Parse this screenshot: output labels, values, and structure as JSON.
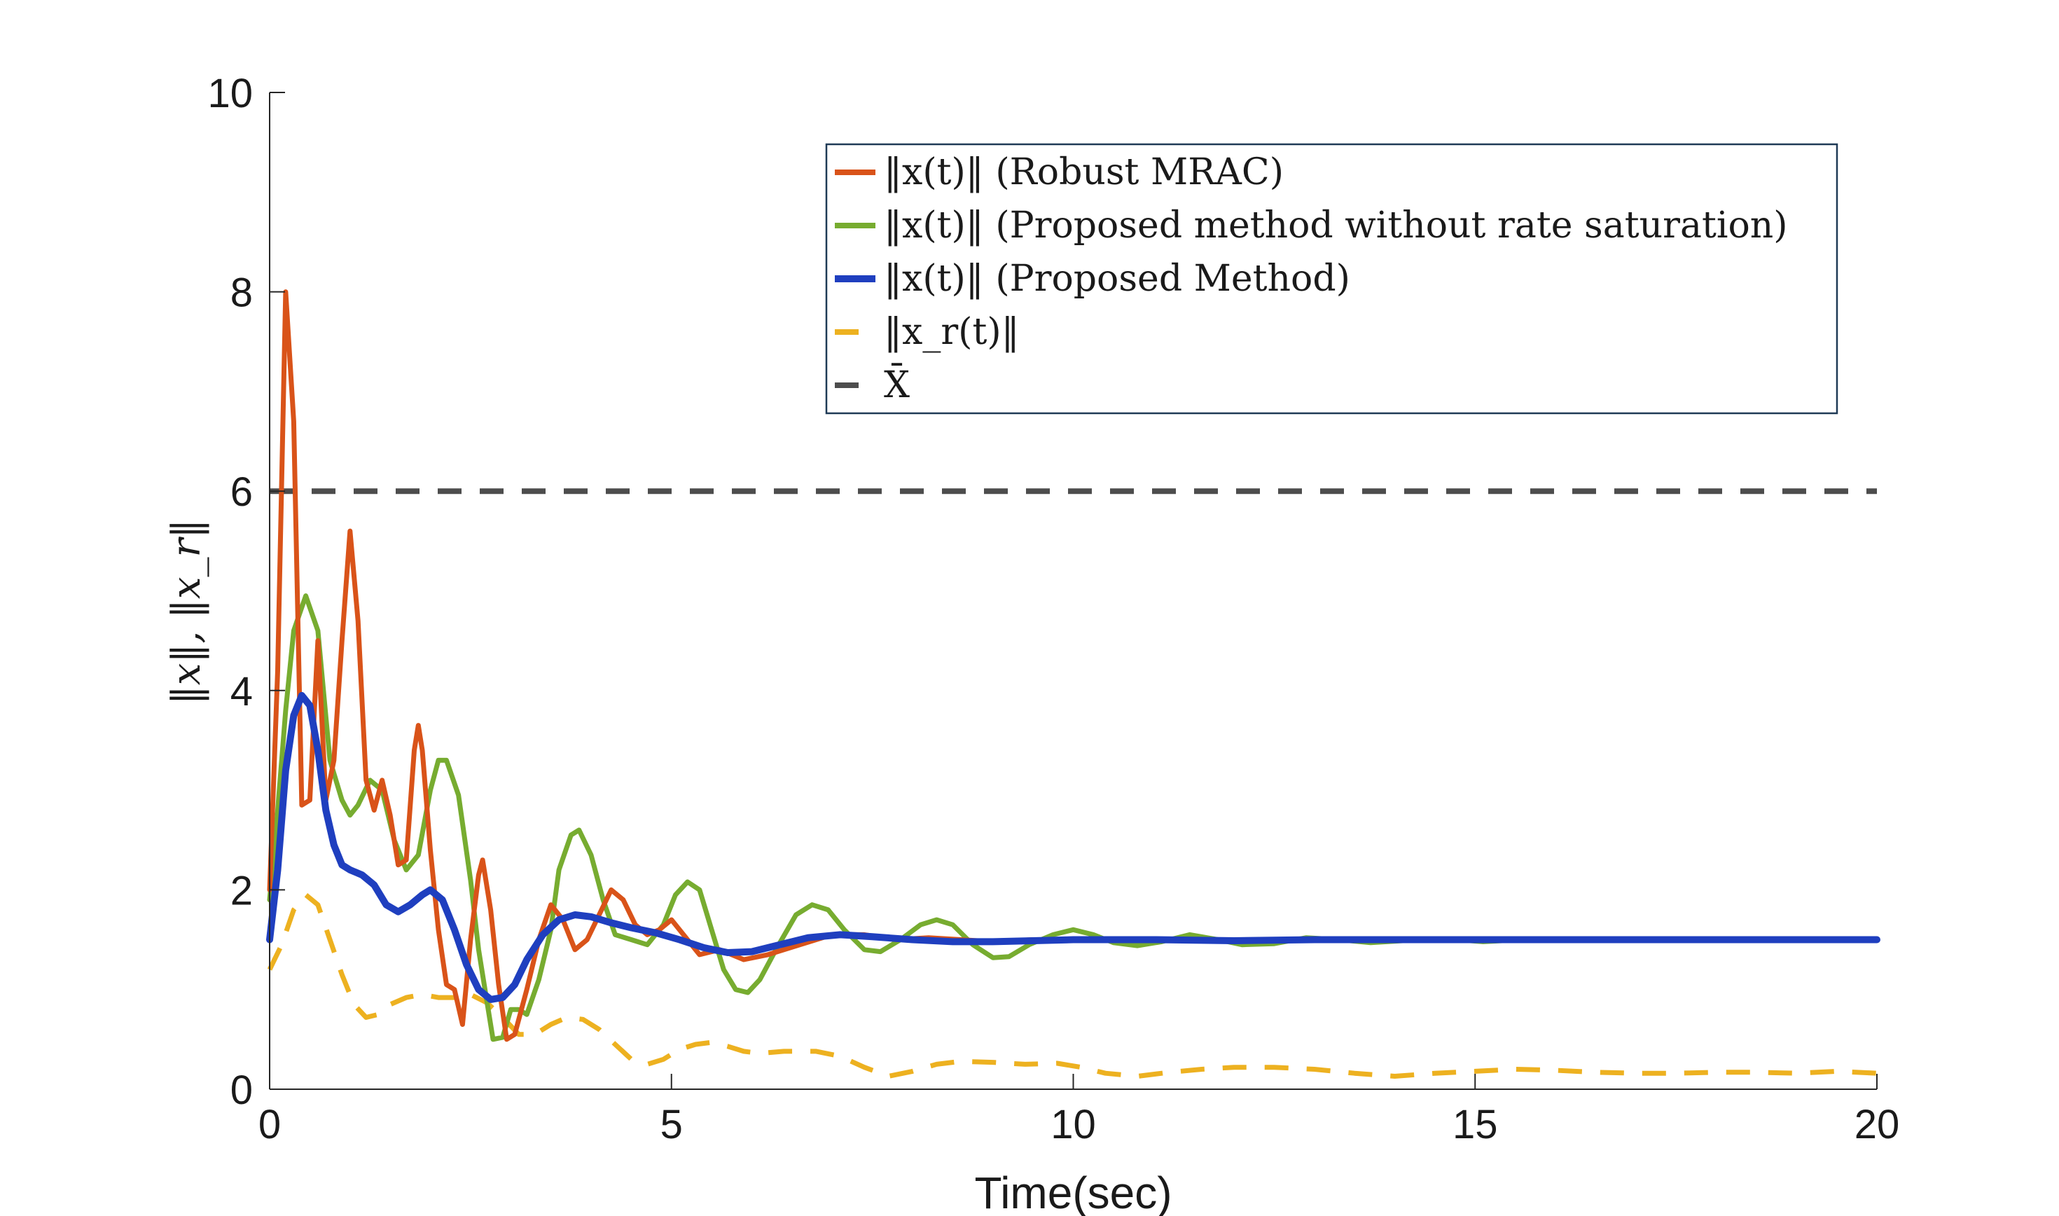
{
  "chart_data": {
    "type": "line",
    "title": "",
    "xlabel": "Time(sec)",
    "ylabel": "‖x‖, ‖x_r‖",
    "xlim": [
      0,
      20
    ],
    "ylim": [
      0,
      10
    ],
    "x_ticks": [
      "0",
      "5",
      "10",
      "15",
      "20"
    ],
    "y_ticks": [
      "0",
      "2",
      "4",
      "6",
      "8",
      "10"
    ],
    "grid": false,
    "legend_position": "top-right",
    "series": [
      {
        "name": "‖x(t)‖ (Robust MRAC)",
        "color": "#D95319",
        "style": "solid",
        "points": [
          [
            0,
            2.0
          ],
          [
            0.1,
            4.2
          ],
          [
            0.2,
            8.0
          ],
          [
            0.3,
            6.7
          ],
          [
            0.4,
            2.85
          ],
          [
            0.5,
            2.9
          ],
          [
            0.6,
            4.5
          ],
          [
            0.7,
            2.9
          ],
          [
            0.8,
            3.3
          ],
          [
            0.9,
            4.5
          ],
          [
            1.0,
            5.6
          ],
          [
            1.1,
            4.7
          ],
          [
            1.2,
            3.1
          ],
          [
            1.3,
            2.8
          ],
          [
            1.4,
            3.1
          ],
          [
            1.5,
            2.75
          ],
          [
            1.6,
            2.25
          ],
          [
            1.7,
            2.3
          ],
          [
            1.8,
            3.4
          ],
          [
            1.85,
            3.65
          ],
          [
            1.9,
            3.4
          ],
          [
            2.0,
            2.4
          ],
          [
            2.1,
            1.6
          ],
          [
            2.2,
            1.05
          ],
          [
            2.3,
            1.0
          ],
          [
            2.4,
            0.65
          ],
          [
            2.5,
            1.5
          ],
          [
            2.6,
            2.15
          ],
          [
            2.65,
            2.3
          ],
          [
            2.75,
            1.8
          ],
          [
            2.85,
            1.05
          ],
          [
            2.95,
            0.5
          ],
          [
            3.05,
            0.55
          ],
          [
            3.2,
            1.0
          ],
          [
            3.35,
            1.5
          ],
          [
            3.5,
            1.85
          ],
          [
            3.65,
            1.7
          ],
          [
            3.8,
            1.4
          ],
          [
            3.95,
            1.5
          ],
          [
            4.1,
            1.75
          ],
          [
            4.25,
            2.0
          ],
          [
            4.4,
            1.9
          ],
          [
            4.55,
            1.65
          ],
          [
            4.7,
            1.55
          ],
          [
            4.85,
            1.6
          ],
          [
            5.0,
            1.7
          ],
          [
            5.15,
            1.55
          ],
          [
            5.35,
            1.35
          ],
          [
            5.6,
            1.4
          ],
          [
            5.9,
            1.3
          ],
          [
            6.2,
            1.35
          ],
          [
            6.6,
            1.45
          ],
          [
            7.0,
            1.55
          ],
          [
            7.4,
            1.55
          ],
          [
            7.8,
            1.5
          ],
          [
            8.2,
            1.52
          ],
          [
            8.6,
            1.5
          ],
          [
            9.0,
            1.48
          ],
          [
            9.5,
            1.5
          ],
          [
            10.0,
            1.5
          ],
          [
            11,
            1.5
          ],
          [
            12,
            1.5
          ],
          [
            13,
            1.5
          ],
          [
            14,
            1.5
          ],
          [
            15,
            1.5
          ],
          [
            16,
            1.5
          ],
          [
            17,
            1.5
          ],
          [
            18,
            1.5
          ],
          [
            19,
            1.5
          ],
          [
            20,
            1.5
          ]
        ]
      },
      {
        "name": "‖x(t)‖ (Proposed method without rate saturation)",
        "color": "#77AC30",
        "style": "solid",
        "points": [
          [
            0,
            1.9
          ],
          [
            0.1,
            2.8
          ],
          [
            0.2,
            3.8
          ],
          [
            0.3,
            4.6
          ],
          [
            0.45,
            4.95
          ],
          [
            0.6,
            4.6
          ],
          [
            0.75,
            3.3
          ],
          [
            0.9,
            2.9
          ],
          [
            1.0,
            2.75
          ],
          [
            1.1,
            2.85
          ],
          [
            1.25,
            3.1
          ],
          [
            1.4,
            3.0
          ],
          [
            1.55,
            2.5
          ],
          [
            1.7,
            2.2
          ],
          [
            1.85,
            2.35
          ],
          [
            2.0,
            3.0
          ],
          [
            2.1,
            3.3
          ],
          [
            2.2,
            3.3
          ],
          [
            2.35,
            2.95
          ],
          [
            2.5,
            2.1
          ],
          [
            2.6,
            1.4
          ],
          [
            2.7,
            0.9
          ],
          [
            2.78,
            0.5
          ],
          [
            2.9,
            0.52
          ],
          [
            3.0,
            0.8
          ],
          [
            3.1,
            0.8
          ],
          [
            3.2,
            0.75
          ],
          [
            3.35,
            1.1
          ],
          [
            3.5,
            1.6
          ],
          [
            3.6,
            2.2
          ],
          [
            3.75,
            2.55
          ],
          [
            3.85,
            2.6
          ],
          [
            4.0,
            2.35
          ],
          [
            4.15,
            1.9
          ],
          [
            4.3,
            1.55
          ],
          [
            4.5,
            1.5
          ],
          [
            4.7,
            1.45
          ],
          [
            4.9,
            1.65
          ],
          [
            5.05,
            1.95
          ],
          [
            5.2,
            2.08
          ],
          [
            5.35,
            2.0
          ],
          [
            5.5,
            1.6
          ],
          [
            5.65,
            1.2
          ],
          [
            5.8,
            1.0
          ],
          [
            5.95,
            0.97
          ],
          [
            6.1,
            1.1
          ],
          [
            6.3,
            1.4
          ],
          [
            6.55,
            1.75
          ],
          [
            6.75,
            1.85
          ],
          [
            6.95,
            1.8
          ],
          [
            7.15,
            1.6
          ],
          [
            7.4,
            1.4
          ],
          [
            7.6,
            1.38
          ],
          [
            7.85,
            1.5
          ],
          [
            8.1,
            1.65
          ],
          [
            8.3,
            1.7
          ],
          [
            8.5,
            1.65
          ],
          [
            8.75,
            1.45
          ],
          [
            9.0,
            1.32
          ],
          [
            9.2,
            1.33
          ],
          [
            9.45,
            1.45
          ],
          [
            9.75,
            1.55
          ],
          [
            10.0,
            1.6
          ],
          [
            10.25,
            1.55
          ],
          [
            10.5,
            1.47
          ],
          [
            10.8,
            1.44
          ],
          [
            11.1,
            1.48
          ],
          [
            11.45,
            1.55
          ],
          [
            11.8,
            1.5
          ],
          [
            12.1,
            1.45
          ],
          [
            12.5,
            1.46
          ],
          [
            12.9,
            1.52
          ],
          [
            13.3,
            1.5
          ],
          [
            13.7,
            1.47
          ],
          [
            14.1,
            1.49
          ],
          [
            14.6,
            1.51
          ],
          [
            15.1,
            1.48
          ],
          [
            15.6,
            1.5
          ],
          [
            16.2,
            1.5
          ],
          [
            17,
            1.49
          ],
          [
            18,
            1.5
          ],
          [
            19,
            1.5
          ],
          [
            20,
            1.5
          ]
        ]
      },
      {
        "name": "‖x(t)‖ (Proposed Method)",
        "color": "#1F3FBF",
        "style": "solid",
        "points": [
          [
            0,
            1.5
          ],
          [
            0.1,
            2.2
          ],
          [
            0.2,
            3.2
          ],
          [
            0.3,
            3.75
          ],
          [
            0.4,
            3.95
          ],
          [
            0.5,
            3.85
          ],
          [
            0.6,
            3.4
          ],
          [
            0.7,
            2.8
          ],
          [
            0.8,
            2.45
          ],
          [
            0.9,
            2.25
          ],
          [
            1.0,
            2.2
          ],
          [
            1.15,
            2.15
          ],
          [
            1.3,
            2.05
          ],
          [
            1.45,
            1.85
          ],
          [
            1.6,
            1.78
          ],
          [
            1.75,
            1.85
          ],
          [
            1.9,
            1.95
          ],
          [
            2.0,
            2.0
          ],
          [
            2.15,
            1.9
          ],
          [
            2.3,
            1.6
          ],
          [
            2.45,
            1.25
          ],
          [
            2.6,
            1.0
          ],
          [
            2.75,
            0.9
          ],
          [
            2.9,
            0.92
          ],
          [
            3.05,
            1.05
          ],
          [
            3.2,
            1.3
          ],
          [
            3.4,
            1.55
          ],
          [
            3.6,
            1.7
          ],
          [
            3.8,
            1.75
          ],
          [
            4.0,
            1.73
          ],
          [
            4.25,
            1.67
          ],
          [
            4.5,
            1.62
          ],
          [
            4.8,
            1.57
          ],
          [
            5.1,
            1.5
          ],
          [
            5.4,
            1.42
          ],
          [
            5.7,
            1.37
          ],
          [
            6.0,
            1.38
          ],
          [
            6.3,
            1.44
          ],
          [
            6.7,
            1.52
          ],
          [
            7.1,
            1.55
          ],
          [
            7.5,
            1.53
          ],
          [
            8.0,
            1.5
          ],
          [
            8.5,
            1.48
          ],
          [
            9.0,
            1.48
          ],
          [
            9.5,
            1.49
          ],
          [
            10,
            1.5
          ],
          [
            11,
            1.5
          ],
          [
            12,
            1.49
          ],
          [
            13,
            1.5
          ],
          [
            14,
            1.5
          ],
          [
            15,
            1.5
          ],
          [
            16,
            1.5
          ],
          [
            17,
            1.5
          ],
          [
            18,
            1.5
          ],
          [
            19,
            1.5
          ],
          [
            20,
            1.5
          ]
        ]
      },
      {
        "name": "‖x_r(t)‖",
        "color": "#EDB120",
        "style": "dashed",
        "points": [
          [
            0,
            1.2
          ],
          [
            0.15,
            1.45
          ],
          [
            0.3,
            1.8
          ],
          [
            0.45,
            1.95
          ],
          [
            0.6,
            1.85
          ],
          [
            0.75,
            1.5
          ],
          [
            0.9,
            1.15
          ],
          [
            1.05,
            0.85
          ],
          [
            1.2,
            0.72
          ],
          [
            1.35,
            0.75
          ],
          [
            1.5,
            0.85
          ],
          [
            1.7,
            0.92
          ],
          [
            1.9,
            0.95
          ],
          [
            2.1,
            0.92
          ],
          [
            2.3,
            0.92
          ],
          [
            2.5,
            0.95
          ],
          [
            2.7,
            0.87
          ],
          [
            2.9,
            0.72
          ],
          [
            3.1,
            0.55
          ],
          [
            3.3,
            0.55
          ],
          [
            3.5,
            0.65
          ],
          [
            3.7,
            0.72
          ],
          [
            3.9,
            0.7
          ],
          [
            4.1,
            0.6
          ],
          [
            4.3,
            0.45
          ],
          [
            4.5,
            0.3
          ],
          [
            4.7,
            0.25
          ],
          [
            4.9,
            0.3
          ],
          [
            5.1,
            0.4
          ],
          [
            5.3,
            0.45
          ],
          [
            5.5,
            0.47
          ],
          [
            5.7,
            0.43
          ],
          [
            5.9,
            0.38
          ],
          [
            6.1,
            0.36
          ],
          [
            6.4,
            0.38
          ],
          [
            6.8,
            0.38
          ],
          [
            7.1,
            0.33
          ],
          [
            7.4,
            0.22
          ],
          [
            7.7,
            0.13
          ],
          [
            8.0,
            0.18
          ],
          [
            8.3,
            0.25
          ],
          [
            8.6,
            0.28
          ],
          [
            9.0,
            0.27
          ],
          [
            9.4,
            0.25
          ],
          [
            9.8,
            0.26
          ],
          [
            10.1,
            0.22
          ],
          [
            10.4,
            0.16
          ],
          [
            10.8,
            0.13
          ],
          [
            11.2,
            0.17
          ],
          [
            11.6,
            0.2
          ],
          [
            12.0,
            0.22
          ],
          [
            12.5,
            0.22
          ],
          [
            13.0,
            0.2
          ],
          [
            13.5,
            0.16
          ],
          [
            14.0,
            0.13
          ],
          [
            14.5,
            0.16
          ],
          [
            15.0,
            0.18
          ],
          [
            15.5,
            0.2
          ],
          [
            16,
            0.19
          ],
          [
            16.5,
            0.17
          ],
          [
            17,
            0.16
          ],
          [
            17.5,
            0.16
          ],
          [
            18,
            0.17
          ],
          [
            18.5,
            0.17
          ],
          [
            19,
            0.16
          ],
          [
            19.5,
            0.18
          ],
          [
            20,
            0.16
          ]
        ]
      },
      {
        "name": "X̄",
        "color": "#4D4D4D",
        "style": "dashed",
        "points": [
          [
            0,
            6
          ],
          [
            20,
            6
          ]
        ]
      }
    ],
    "legend": [
      {
        "label": "‖x(t)‖ (Robust MRAC)",
        "color": "#D95319",
        "style": "solid"
      },
      {
        "label": "‖x(t)‖ (Proposed method without rate saturation)",
        "color": "#77AC30",
        "style": "solid"
      },
      {
        "label": "‖x(t)‖ (Proposed Method)",
        "color": "#1F3FBF",
        "style": "solid"
      },
      {
        "label": "‖x_r(t)‖",
        "color": "#EDB120",
        "style": "dashed"
      },
      {
        "label": "X̄",
        "color": "#4D4D4D",
        "style": "dashed"
      }
    ]
  }
}
